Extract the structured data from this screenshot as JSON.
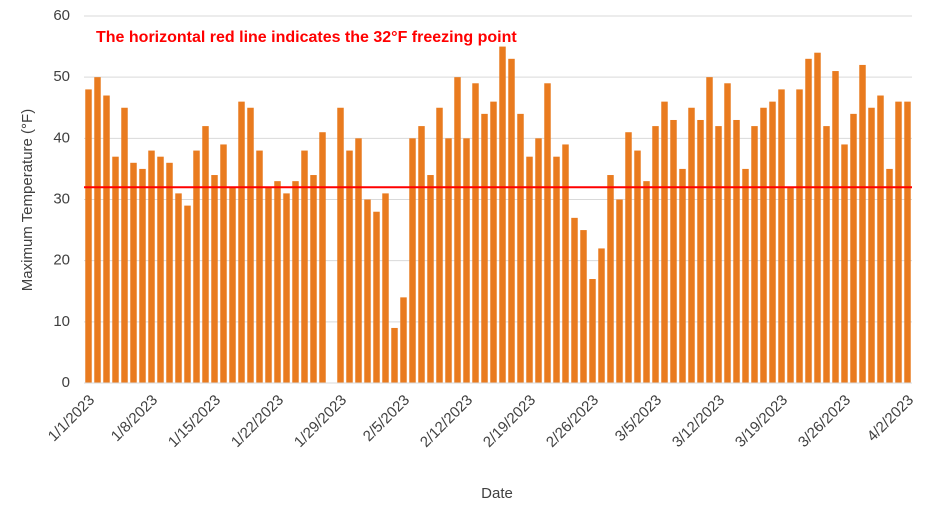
{
  "chart_data": {
    "type": "bar",
    "annotation": "The horizontal  red line indicates the 32°F freezing point",
    "annotation_color": "#ff0000",
    "reference_line": {
      "value": 32,
      "color": "#ff0000"
    },
    "xlabel": "Date",
    "ylabel": "Maximum Temperature (°F)",
    "categories": [
      "1/1/2023",
      null,
      null,
      null,
      null,
      null,
      null,
      "1/8/2023",
      null,
      null,
      null,
      null,
      null,
      null,
      "1/15/2023",
      null,
      null,
      null,
      null,
      null,
      null,
      "1/22/2023",
      null,
      null,
      null,
      null,
      null,
      null,
      "1/29/2023",
      null,
      null,
      null,
      null,
      null,
      null,
      "2/5/2023",
      null,
      null,
      null,
      null,
      null,
      null,
      "2/12/2023",
      null,
      null,
      null,
      null,
      null,
      null,
      "2/19/2023",
      null,
      null,
      null,
      null,
      null,
      null,
      "2/26/2023",
      null,
      null,
      null,
      null,
      null,
      null,
      "3/5/2023",
      null,
      null,
      null,
      null,
      null,
      null,
      "3/12/2023",
      null,
      null,
      null,
      null,
      null,
      null,
      "3/19/2023",
      null,
      null,
      null,
      null,
      null,
      null,
      "3/26/2023",
      null,
      null,
      null,
      null,
      null,
      null,
      "4/2/2023"
    ],
    "values": [
      48,
      50,
      47,
      37,
      45,
      36,
      35,
      38,
      37,
      36,
      31,
      29,
      38,
      42,
      34,
      39,
      32,
      46,
      45,
      38,
      32,
      33,
      31,
      33,
      38,
      34,
      41,
      null,
      45,
      38,
      40,
      30,
      28,
      31,
      9,
      14,
      40,
      42,
      34,
      45,
      40,
      50,
      40,
      49,
      44,
      46,
      55,
      53,
      44,
      37,
      40,
      49,
      37,
      39,
      27,
      25,
      17,
      22,
      34,
      30,
      41,
      38,
      33,
      42,
      46,
      43,
      35,
      45,
      43,
      50,
      42,
      49,
      43,
      35,
      42,
      45,
      46,
      48,
      32,
      48,
      53,
      54,
      42,
      51,
      39,
      44,
      52,
      45,
      47,
      35,
      46,
      46
    ],
    "color": "#e97b1f",
    "ylim": [
      0,
      60
    ],
    "yticks": [
      0,
      10,
      20,
      30,
      40,
      50,
      60
    ],
    "grid": true
  }
}
